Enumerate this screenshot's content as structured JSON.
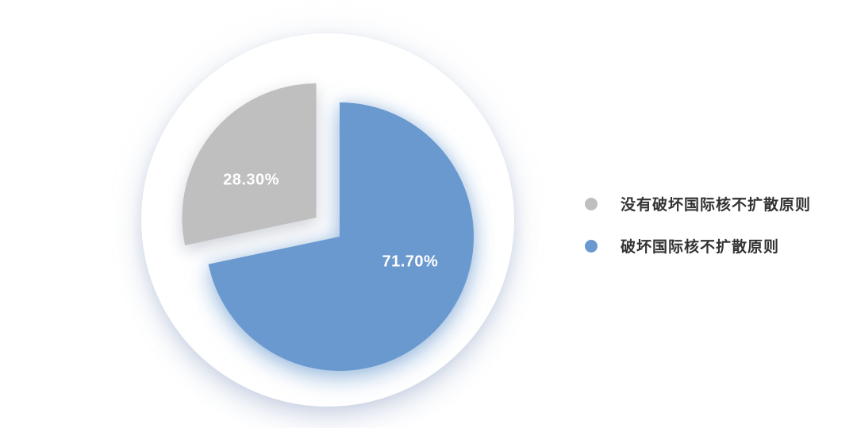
{
  "chart_data": {
    "type": "pie",
    "title": "",
    "slices": [
      {
        "label": "没有破坏国际核不扩散原则",
        "value": 28.3,
        "display": "28.30%",
        "color": "#bfbfbf",
        "exploded": true
      },
      {
        "label": "破坏国际核不扩散原则",
        "value": 71.7,
        "display": "71.70%",
        "color": "#6999ce",
        "exploded": false
      }
    ],
    "start_angle_deg": 258.12,
    "direction": "clockwise",
    "legend_position": "right",
    "value_label_color": "#ffffff",
    "legend_text_color": "#333333",
    "background_color": "#ffffff"
  }
}
